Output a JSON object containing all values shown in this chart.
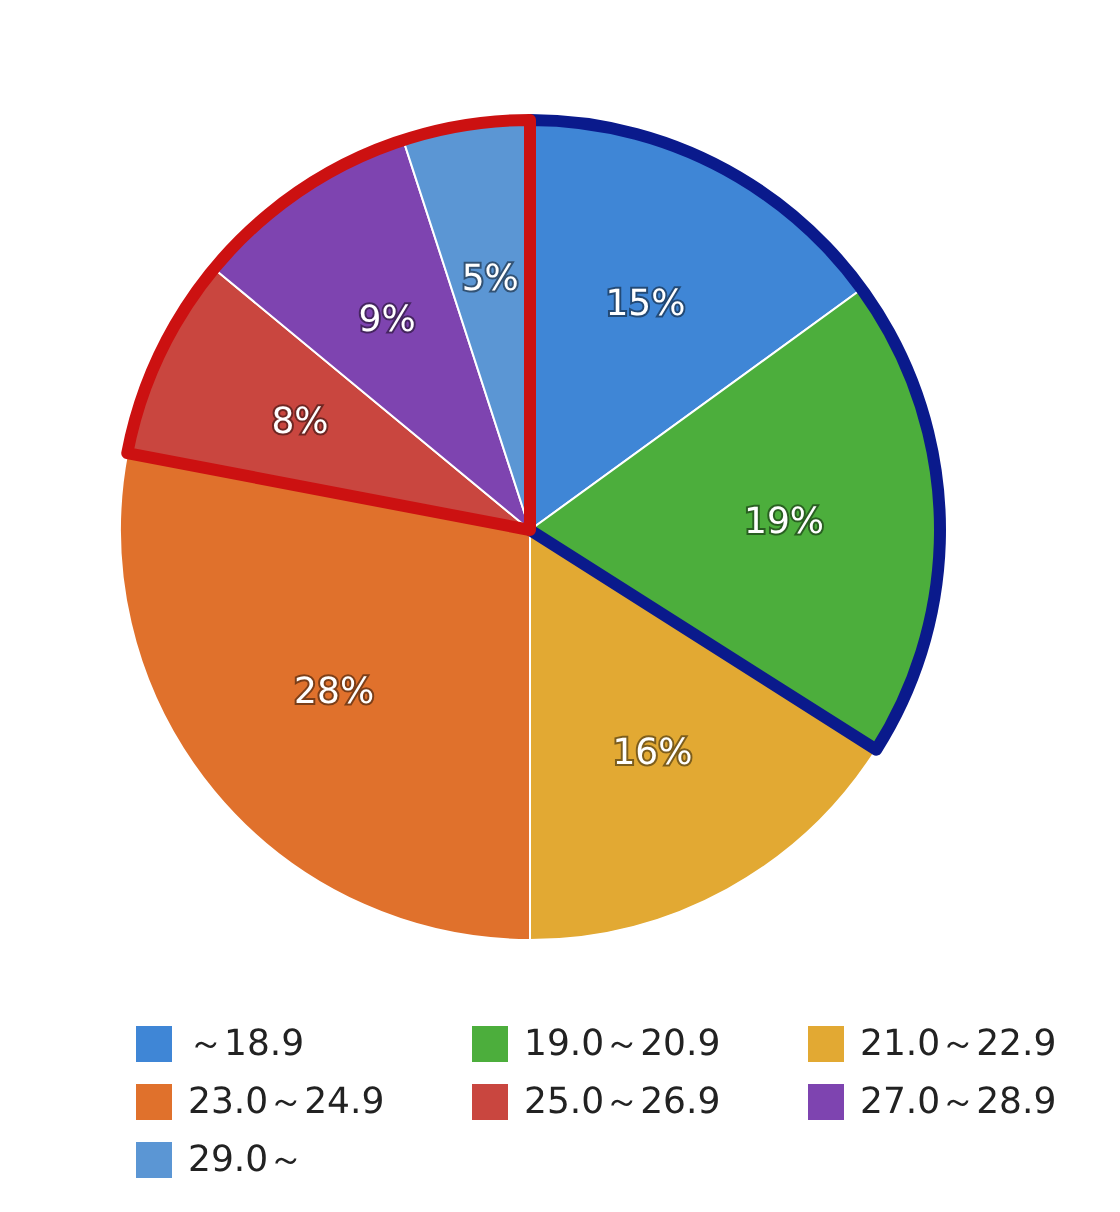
{
  "chart_data": {
    "type": "pie",
    "categories": [
      "～18.9",
      "19.0～20.9",
      "21.0～22.9",
      "23.0～24.9",
      "25.0～26.9",
      "27.0～28.9",
      "29.0～"
    ],
    "values": [
      15,
      19,
      16,
      28,
      8,
      9,
      5
    ],
    "colors": [
      "#3f86d6",
      "#4cae3c",
      "#e2a933",
      "#e0712c",
      "#c9463f",
      "#7e44b0",
      "#5b96d4"
    ],
    "value_labels": [
      "15%",
      "19%",
      "16%",
      "28%",
      "8%",
      "9%",
      "5%"
    ],
    "legend": "bottom"
  }
}
